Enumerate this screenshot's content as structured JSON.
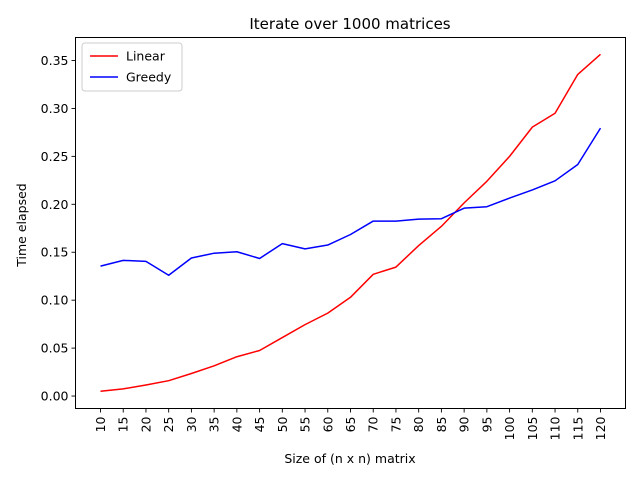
{
  "chart_data": {
    "type": "line",
    "title": "Iterate over 1000 matrices",
    "xlabel": "Size of (n x n) matrix",
    "ylabel": "Time elapsed",
    "x": [
      10,
      15,
      20,
      25,
      30,
      35,
      40,
      45,
      50,
      55,
      60,
      65,
      70,
      75,
      80,
      85,
      90,
      95,
      100,
      105,
      110,
      115,
      120
    ],
    "x_tick_labels": [
      "10",
      "15",
      "20",
      "25",
      "30",
      "35",
      "40",
      "45",
      "50",
      "55",
      "60",
      "65",
      "70",
      "75",
      "80",
      "85",
      "90",
      "95",
      "100",
      "105",
      "110",
      "115",
      "120"
    ],
    "y_ticks": [
      0.0,
      0.05,
      0.1,
      0.15,
      0.2,
      0.25,
      0.3,
      0.35
    ],
    "y_tick_labels": [
      "0.00",
      "0.05",
      "0.10",
      "0.15",
      "0.20",
      "0.25",
      "0.30",
      "0.35"
    ],
    "ylim": [
      -0.013,
      0.374
    ],
    "grid": false,
    "legend_position": "top-left",
    "series": [
      {
        "name": "Linear",
        "color": "#ff0000",
        "values": [
          0.005,
          0.0075,
          0.0115,
          0.016,
          0.0235,
          0.0315,
          0.041,
          0.0475,
          0.061,
          0.0745,
          0.0865,
          0.103,
          0.127,
          0.1345,
          0.157,
          0.177,
          0.2015,
          0.224,
          0.25,
          0.2805,
          0.295,
          0.3355,
          0.3565
        ]
      },
      {
        "name": "Greedy",
        "color": "#0000ff",
        "values": [
          0.1355,
          0.1415,
          0.1405,
          0.126,
          0.144,
          0.149,
          0.1505,
          0.1435,
          0.159,
          0.1535,
          0.1575,
          0.1685,
          0.1825,
          0.1825,
          0.1845,
          0.185,
          0.196,
          0.1975,
          0.2065,
          0.215,
          0.2245,
          0.2415,
          0.2795
        ]
      }
    ]
  }
}
